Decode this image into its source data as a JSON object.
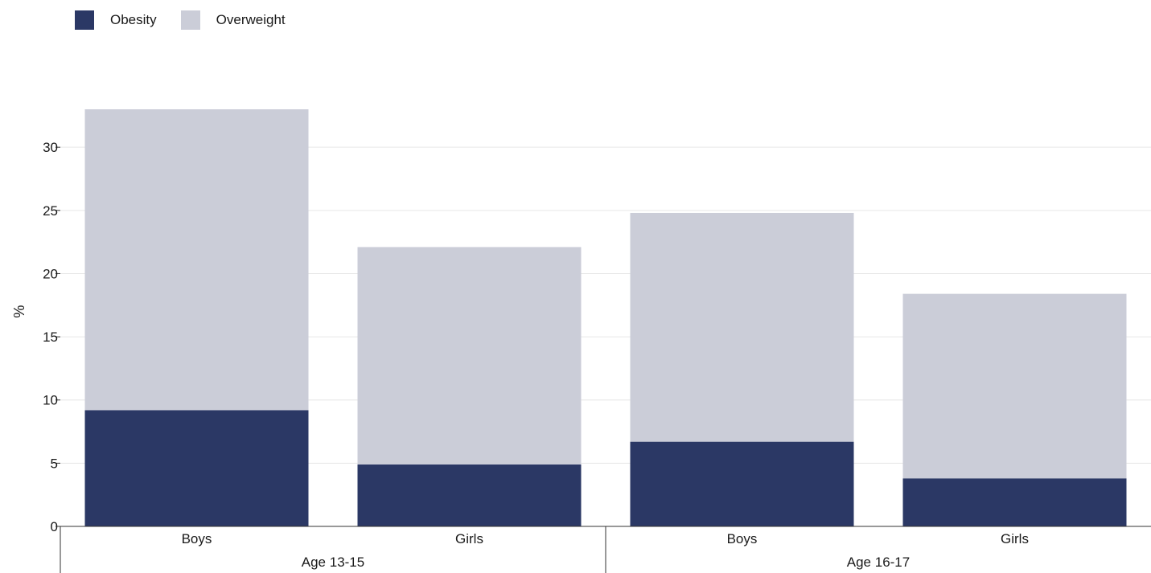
{
  "colors": {
    "obesity": "#2b3865",
    "overweight": "#cbcdd8",
    "grid": "#e6e6e6",
    "axis": "#333333"
  },
  "chart_data": {
    "type": "bar",
    "stacked": true,
    "ylabel": "%",
    "ylim": [
      0,
      33
    ],
    "yticks": [
      0,
      5,
      10,
      15,
      20,
      25,
      30
    ],
    "grid": true,
    "legend_position": "top-left",
    "groups": [
      {
        "label": "Age 13-15",
        "categories": [
          "Boys",
          "Girls"
        ]
      },
      {
        "label": "Age 16-17",
        "categories": [
          "Boys",
          "Girls"
        ]
      }
    ],
    "categories": [
      "Boys",
      "Girls",
      "Boys",
      "Girls"
    ],
    "series": [
      {
        "name": "Obesity",
        "color_key": "obesity",
        "values": [
          9.2,
          4.9,
          6.7,
          3.8
        ]
      },
      {
        "name": "Overweight",
        "color_key": "overweight",
        "values": [
          23.8,
          17.2,
          18.1,
          14.6
        ]
      }
    ]
  }
}
